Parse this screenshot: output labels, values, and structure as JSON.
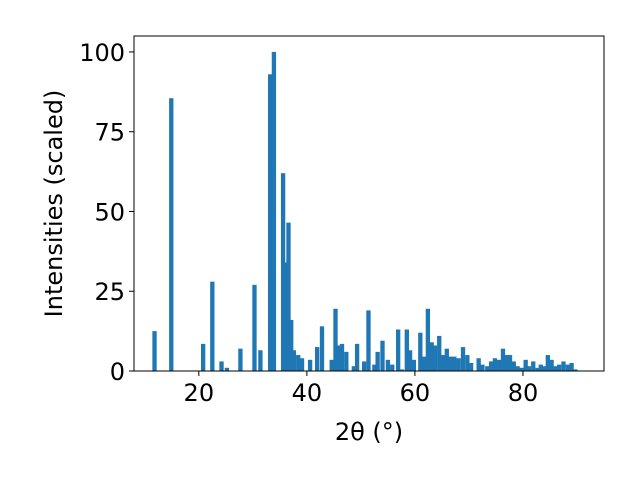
{
  "chart_data": {
    "type": "bar",
    "xlabel": "2θ (°)",
    "ylabel": "Intensities (scaled)",
    "xlim": [
      8,
      95
    ],
    "ylim": [
      0,
      105
    ],
    "xticks": [
      20,
      40,
      60,
      80
    ],
    "yticks": [
      0,
      25,
      50,
      75,
      100
    ],
    "bar_width": 0.8,
    "color": "#1f77b4",
    "grid": false,
    "x": [
      11.8,
      14.9,
      20.8,
      22.5,
      24.2,
      25.2,
      27.7,
      30.3,
      31.4,
      33.2,
      33.9,
      35.6,
      36.2,
      36.6,
      37.1,
      37.6,
      38.4,
      39.1,
      40.6,
      41.9,
      42.8,
      44.6,
      45.3,
      45.9,
      46.5,
      47.3,
      48.7,
      49.3,
      50.6,
      51.4,
      52.5,
      53.1,
      54.0,
      55.0,
      55.8,
      56.9,
      57.6,
      58.5,
      59.1,
      59.8,
      61.0,
      61.7,
      62.4,
      63.1,
      63.7,
      64.5,
      65.2,
      65.9,
      66.6,
      67.3,
      68.1,
      68.9,
      69.7,
      70.4,
      71.8,
      72.5,
      73.4,
      74.1,
      74.8,
      75.6,
      76.3,
      77.0,
      77.6,
      78.3,
      79.0,
      79.7,
      80.5,
      81.1,
      81.9,
      82.7,
      83.3,
      84.0,
      84.6,
      85.3,
      86.0,
      86.7,
      87.5,
      88.3,
      89.0,
      89.7
    ],
    "values": [
      12.5,
      85.5,
      8.5,
      28,
      3,
      1,
      7,
      27,
      6.5,
      93,
      100,
      62,
      34,
      46.5,
      16,
      6.5,
      5,
      4,
      3.5,
      7.5,
      14,
      3.5,
      19.5,
      8,
      8.5,
      6,
      1.5,
      8.5,
      3,
      19,
      2,
      6,
      9.5,
      3.5,
      2,
      13,
      0.5,
      13,
      6.5,
      3.5,
      12,
      4.5,
      19.5,
      9,
      8,
      11,
      5,
      7,
      4.5,
      4.5,
      4,
      7.5,
      5,
      2.5,
      4,
      2,
      1.5,
      3,
      4,
      3.5,
      7,
      5,
      5,
      3,
      1.5,
      1,
      3.5,
      1.5,
      3,
      1,
      2,
      1.5,
      5,
      3.5,
      1.5,
      2,
      3,
      2,
      2.5,
      0.5
    ]
  }
}
